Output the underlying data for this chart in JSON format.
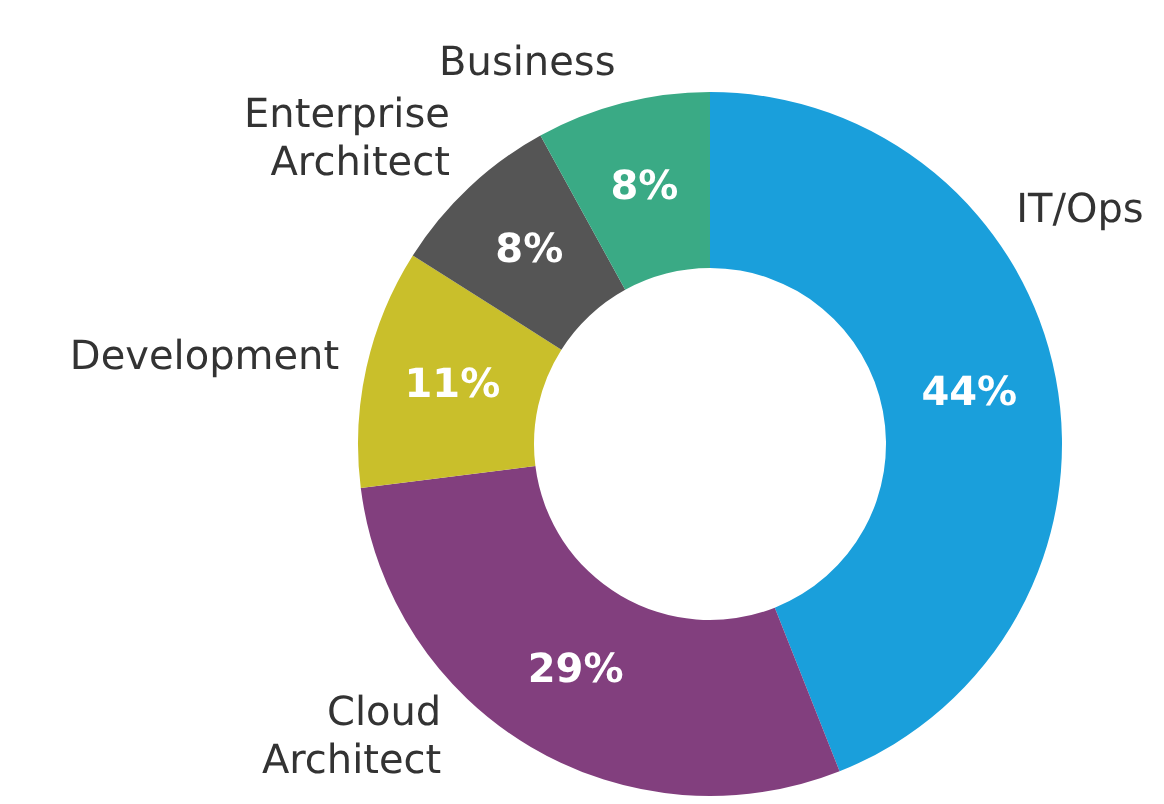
{
  "chart_data": {
    "type": "donut",
    "categories": [
      "IT/Ops",
      "Cloud Architect",
      "Development",
      "Enterprise Architect",
      "Business"
    ],
    "values": [
      44,
      29,
      11,
      8,
      8
    ],
    "value_labels": [
      "44%",
      "29%",
      "11%",
      "8%",
      "8%"
    ],
    "colors": [
      "#1a9fdb",
      "#823f7e",
      "#c9bf2b",
      "#555555",
      "#3aaa85"
    ],
    "legend": false
  }
}
